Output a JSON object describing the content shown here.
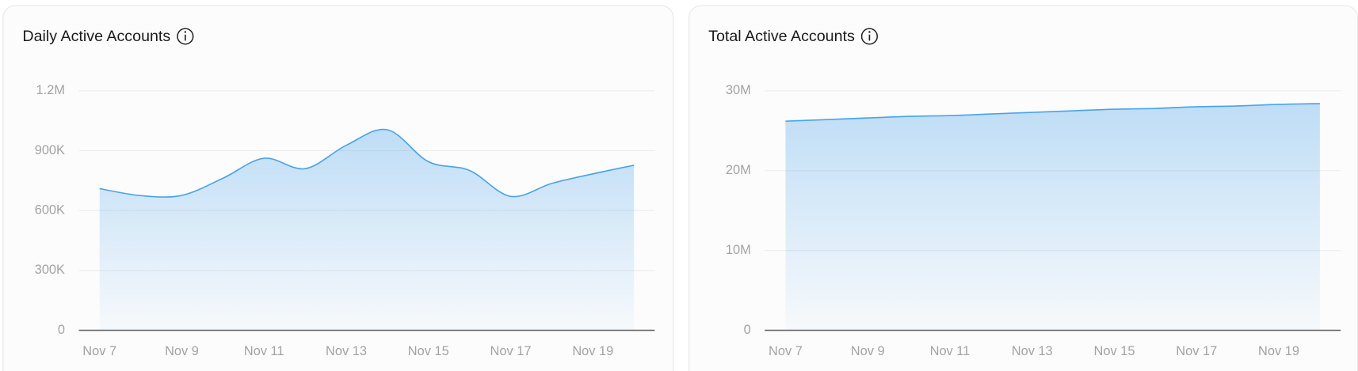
{
  "chart_data": [
    {
      "type": "area",
      "title": "Daily Active Accounts",
      "color": "#4ba3ea",
      "categories": [
        "Nov 7",
        null,
        "Nov 9",
        null,
        "Nov 11",
        null,
        "Nov 13",
        null,
        "Nov 15",
        null,
        "Nov 17",
        null,
        "Nov 19",
        null
      ],
      "values": [
        710000,
        675000,
        676000,
        762000,
        862000,
        810000,
        927000,
        1005000,
        845000,
        801000,
        671000,
        736000,
        784000,
        827000
      ],
      "ylim": [
        0,
        1200000
      ],
      "yticks": [
        0,
        {
          "value": 300000,
          "label": "300K"
        },
        {
          "value": 600000,
          "label": "600K"
        },
        {
          "value": 900000,
          "label": "900K"
        },
        {
          "value": 1200000,
          "label": "1.2M"
        }
      ],
      "grid": true
    },
    {
      "type": "area",
      "title": "Total Active Accounts",
      "color": "#4ba3ea",
      "categories": [
        "Nov 7",
        null,
        "Nov 9",
        null,
        "Nov 11",
        null,
        "Nov 13",
        null,
        "Nov 15",
        null,
        "Nov 17",
        null,
        "Nov 19",
        null
      ],
      "values": [
        26200000,
        26400000,
        26600000,
        26800000,
        26900000,
        27100000,
        27300000,
        27500000,
        27700000,
        27800000,
        28000000,
        28100000,
        28300000,
        28400000
      ],
      "ylim": [
        0,
        30000000
      ],
      "yticks": [
        0,
        {
          "value": 10000000,
          "label": "10M"
        },
        {
          "value": 20000000,
          "label": "20M"
        },
        {
          "value": 30000000,
          "label": "30M"
        }
      ],
      "grid": true
    }
  ]
}
